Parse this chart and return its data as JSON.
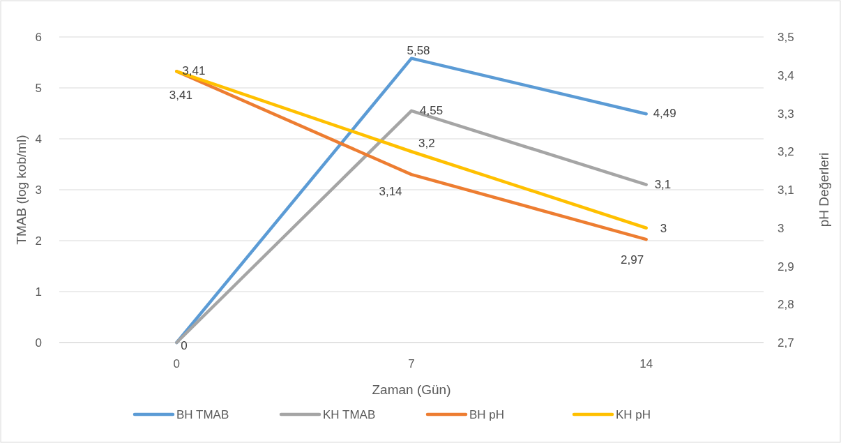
{
  "chart_data": {
    "type": "line",
    "xlabel": "Zaman (Gün)",
    "ylabel": "TMAB (log kob/ml)",
    "y2label": "pH Değerleri",
    "categories": [
      "0",
      "7",
      "14"
    ],
    "ylim": [
      0,
      6
    ],
    "yticks": [
      0,
      1,
      2,
      3,
      4,
      5,
      6
    ],
    "y2lim": [
      2.7,
      3.5
    ],
    "y2ticks": [
      {
        "value": 2.7,
        "label": "2,7"
      },
      {
        "value": 2.8,
        "label": "2,8"
      },
      {
        "value": 2.9,
        "label": "2,9"
      },
      {
        "value": 3,
        "label": "3"
      },
      {
        "value": 3.1,
        "label": "3,1"
      },
      {
        "value": 3.2,
        "label": "3,2"
      },
      {
        "value": 3.3,
        "label": "3,3"
      },
      {
        "value": 3.4,
        "label": "3,4"
      },
      {
        "value": 3.5,
        "label": "3,5"
      }
    ],
    "grid": "y",
    "legend": "bottom",
    "marker": "none",
    "line_style": "solid",
    "series": [
      {
        "name": "BH TMAB",
        "color": "#5b9bd5",
        "values": [
          0,
          5.58,
          4.49
        ],
        "value_labels": [
          "0",
          "5,58",
          "4,49"
        ]
      },
      {
        "name": "KH TMAB",
        "color": "#a5a5a5",
        "values": [
          0,
          4.55,
          3.1
        ],
        "value_labels": [
          null,
          "4,55",
          "3,1"
        ]
      },
      {
        "name": "BH pH",
        "color": "#ed7d31",
        "axis": "y2",
        "values": [
          3.41,
          3.14,
          2.97
        ],
        "value_labels": [
          "3,41",
          "3,14",
          "2,97"
        ]
      },
      {
        "name": "KH pH",
        "color": "#ffc000",
        "axis": "y2",
        "values": [
          3.41,
          3.2,
          3
        ],
        "value_labels": [
          "3,41",
          "3,2",
          "3"
        ]
      }
    ]
  }
}
